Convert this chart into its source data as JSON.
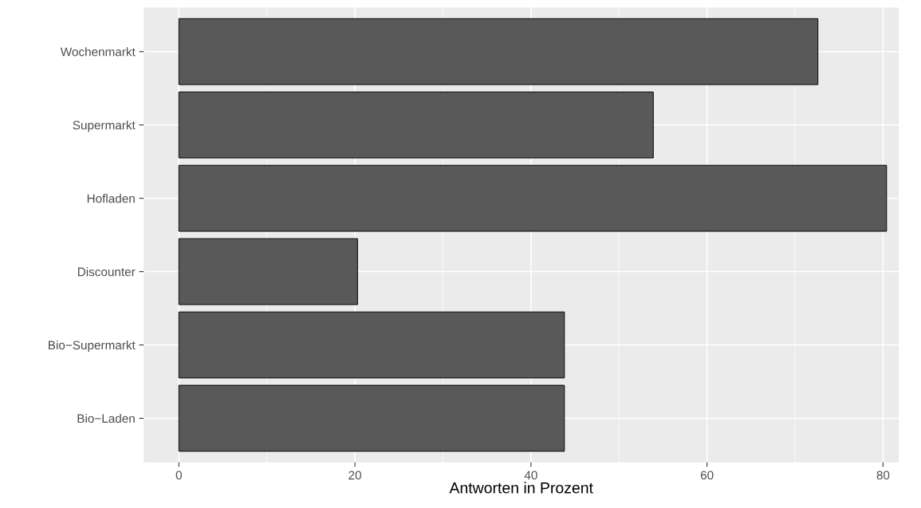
{
  "chart_data": {
    "type": "bar",
    "orientation": "horizontal",
    "xlabel": "Antworten in Prozent",
    "categories": [
      "Wochenmarkt",
      "Supermarkt",
      "Hofladen",
      "Discounter",
      "Bio−Supermarkt",
      "Bio−Laden"
    ],
    "values": [
      72.6,
      53.9,
      80.4,
      20.3,
      43.8,
      43.8
    ],
    "color": "#595959",
    "xlim": [
      -4,
      81.8
    ],
    "xticks": [
      0,
      20,
      40,
      60,
      80
    ],
    "grid": true
  }
}
